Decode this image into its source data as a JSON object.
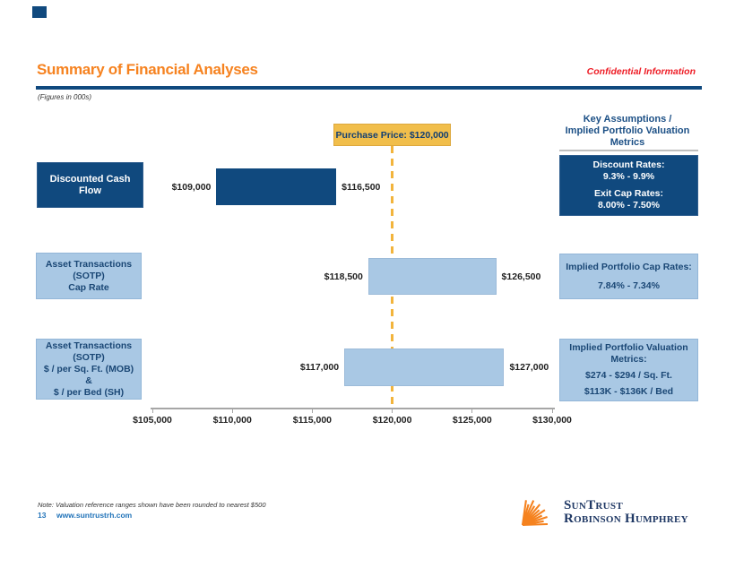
{
  "slide": {
    "title": "Summary of Financial Analyses",
    "confidential": "Confidential Information",
    "figures_note": "(Figures in 000s)",
    "right_panel_header": "Key Assumptions /\nImplied Portfolio Valuation\nMetrics"
  },
  "colors": {
    "navy": "#10497E",
    "light_blue": "#A9C8E4",
    "gold": "#F1BE4B",
    "title_orange": "#F6821F",
    "confidential_red": "#EE1C25",
    "link_blue": "#2173B9"
  },
  "chart_data": {
    "type": "bar",
    "orientation": "horizontal-range",
    "title": "Summary of Financial Analyses",
    "x_axis": {
      "min": 105000,
      "max": 130000,
      "ticks": [
        105000,
        110000,
        115000,
        120000,
        125000,
        130000
      ],
      "tick_labels": [
        "$105,000",
        "$110,000",
        "$115,000",
        "$120,000",
        "$125,000",
        "$130,000"
      ]
    },
    "purchase_price": {
      "value": 120000,
      "label": "Purchase Price: $120,000"
    },
    "rows": [
      {
        "name": "Discounted Cash Flow",
        "label": "Discounted Cash\nFlow",
        "low": 109000,
        "high": 116500,
        "low_label": "$109,000",
        "high_label": "$116,500",
        "style": "dark",
        "assumption_lines": [
          "Discount Rates:\n9.3% - 9.9%",
          "Exit Cap Rates:\n8.00% - 7.50%"
        ]
      },
      {
        "name": "Asset Transactions (SOTP) Cap Rate",
        "label": "Asset Transactions\n(SOTP)\nCap Rate",
        "low": 118500,
        "high": 126500,
        "low_label": "$118,500",
        "high_label": "$126,500",
        "style": "light",
        "assumption_lines": [
          "Implied Portfolio Cap Rates:",
          "7.84% - 7.34%"
        ]
      },
      {
        "name": "Asset Transactions (SOTP) $ per Sq Ft (MOB) & $ per Bed (SH)",
        "label": "Asset Transactions\n(SOTP)\n$ / per Sq. Ft. (MOB)\n&\n$ / per Bed (SH)",
        "low": 117000,
        "high": 127000,
        "low_label": "$117,000",
        "high_label": "$127,000",
        "style": "light",
        "assumption_lines": [
          "Implied Portfolio Valuation\nMetrics:",
          "$274 - $294 / Sq. Ft.",
          "$113K - $136K / Bed"
        ]
      }
    ]
  },
  "footer": {
    "note": "Note: Valuation reference ranges shown have been rounded to nearest $500",
    "page_number": "13",
    "website": "www.suntrustrh.com",
    "logo_icon": "sunburst-rays-icon",
    "brand_line1": "SunTrust",
    "brand_line2": "Robinson Humphrey"
  }
}
